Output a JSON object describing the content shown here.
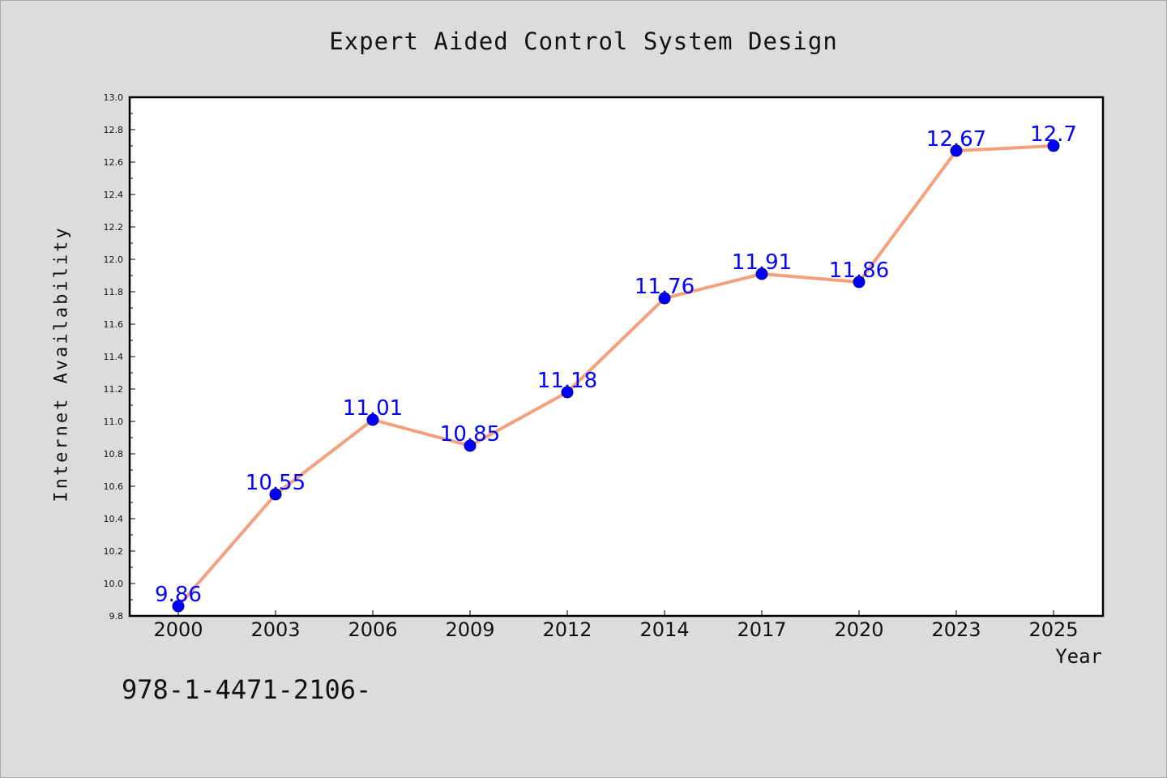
{
  "chart_data": {
    "type": "line",
    "title": "Expert Aided Control System Design",
    "xlabel": "Year",
    "ylabel": "Internet Availability",
    "categories": [
      "2000",
      "2003",
      "2006",
      "2009",
      "2012",
      "2014",
      "2017",
      "2020",
      "2023",
      "2025"
    ],
    "series": [
      {
        "values": [
          9.86,
          10.55,
          11.01,
          10.85,
          11.18,
          11.76,
          11.91,
          11.86,
          12.67,
          12.7
        ],
        "data_labels": [
          "9.86",
          "10.55",
          "11.01",
          "10.85",
          "11.18",
          "11.76",
          "11.91",
          "11.86",
          "12.67",
          "12.7"
        ]
      }
    ],
    "ylim": [
      9.8,
      13.0
    ],
    "y_ticks": [
      "9.8",
      "10.0",
      "10.2",
      "10.4",
      "10.6",
      "10.8",
      "11.0",
      "11.2",
      "11.4",
      "11.6",
      "11.8",
      "12.0",
      "12.2",
      "12.4",
      "12.6",
      "12.8",
      "13.0"
    ],
    "grid": false,
    "legend": "none",
    "colors": {
      "line": "#f4a07e",
      "marker": "#0000ff",
      "data_label": "#0000ff",
      "plot_background": "#ffffff",
      "figure_background": "#dcdcdc"
    }
  },
  "footer": {
    "text": "978-1-4471-2106-"
  }
}
